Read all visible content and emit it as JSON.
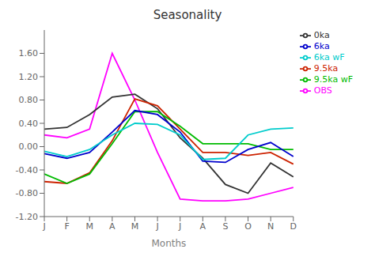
{
  "chart_data": {
    "type": "line",
    "title": "Seasonality",
    "x_label": "Months",
    "categories": [
      "J",
      "F",
      "M",
      "A",
      "M",
      "J",
      "J",
      "A",
      "S",
      "O",
      "N",
      "D"
    ],
    "series": [
      {
        "name": "OBS",
        "color": "#ff00ff",
        "values": [
          0.2,
          0.15,
          0.3,
          1.6,
          0.8,
          -0.1,
          -0.9,
          -0.93,
          -0.93,
          -0.9,
          -0.8,
          -0.7
        ]
      },
      {
        "name": "0ka",
        "color": "#333333",
        "values": [
          0.3,
          0.33,
          0.55,
          0.85,
          0.9,
          0.65,
          0.15,
          -0.2,
          -0.65,
          -0.8,
          -0.28,
          -0.52
        ]
      },
      {
        "name": "9.5ka",
        "color": "#cc2200",
        "values": [
          -0.6,
          -0.63,
          -0.45,
          0.1,
          0.82,
          0.7,
          0.3,
          -0.1,
          -0.1,
          -0.15,
          -0.1,
          -0.3
        ]
      },
      {
        "name": "9.5ka wF",
        "color": "#00bb00",
        "values": [
          -0.47,
          -0.63,
          -0.47,
          0.05,
          0.6,
          0.6,
          0.35,
          0.05,
          0.05,
          0.05,
          -0.05,
          -0.05
        ]
      },
      {
        "name": "6ka",
        "color": "#0000cc",
        "values": [
          -0.12,
          -0.2,
          -0.1,
          0.25,
          0.62,
          0.55,
          0.25,
          -0.25,
          -0.27,
          -0.05,
          0.07,
          -0.17
        ]
      },
      {
        "name": "6ka wF",
        "color": "#00cccc",
        "values": [
          -0.08,
          -0.17,
          -0.05,
          0.2,
          0.4,
          0.38,
          0.2,
          -0.22,
          -0.2,
          0.2,
          0.3,
          0.32
        ]
      }
    ],
    "ylim": [
      -1.2,
      2.0
    ],
    "yticks": [
      {
        "value": -1.2,
        "label": "-1.20"
      },
      {
        "value": -0.8,
        "label": "-0.80"
      },
      {
        "value": -0.4,
        "label": "-0.40"
      },
      {
        "value": 0,
        "label": "0.00"
      },
      {
        "value": 0.4,
        "label": "0.40"
      },
      {
        "value": 0.8,
        "label": "0.80"
      },
      {
        "value": 1.2,
        "label": "1.20"
      },
      {
        "value": 1.6,
        "label": "1.60"
      }
    ],
    "grid": false,
    "legend": "upper right"
  }
}
